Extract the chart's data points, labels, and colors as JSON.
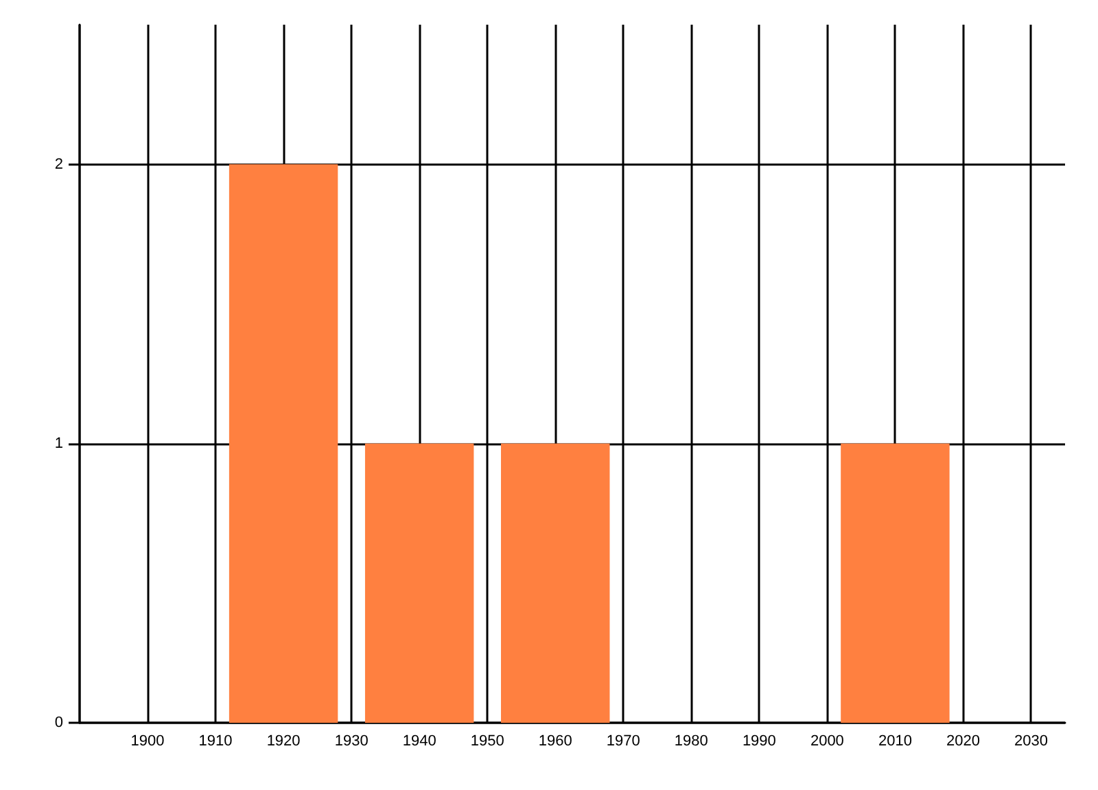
{
  "chart_data": {
    "type": "bar",
    "x": [
      1920,
      1940,
      1960,
      2010
    ],
    "values": [
      2,
      1,
      1,
      1
    ],
    "color": "#ff8040",
    "xlim": [
      1890,
      2035
    ],
    "xticks": [
      {
        "value": 1890,
        "label": null
      },
      1900,
      1910,
      1920,
      1930,
      1940,
      1950,
      1960,
      1970,
      1980,
      1990,
      2000,
      2010,
      2020,
      2030
    ],
    "ylim": [
      0,
      2.5
    ],
    "yticks": [
      0,
      1,
      2
    ],
    "grid": true
  }
}
